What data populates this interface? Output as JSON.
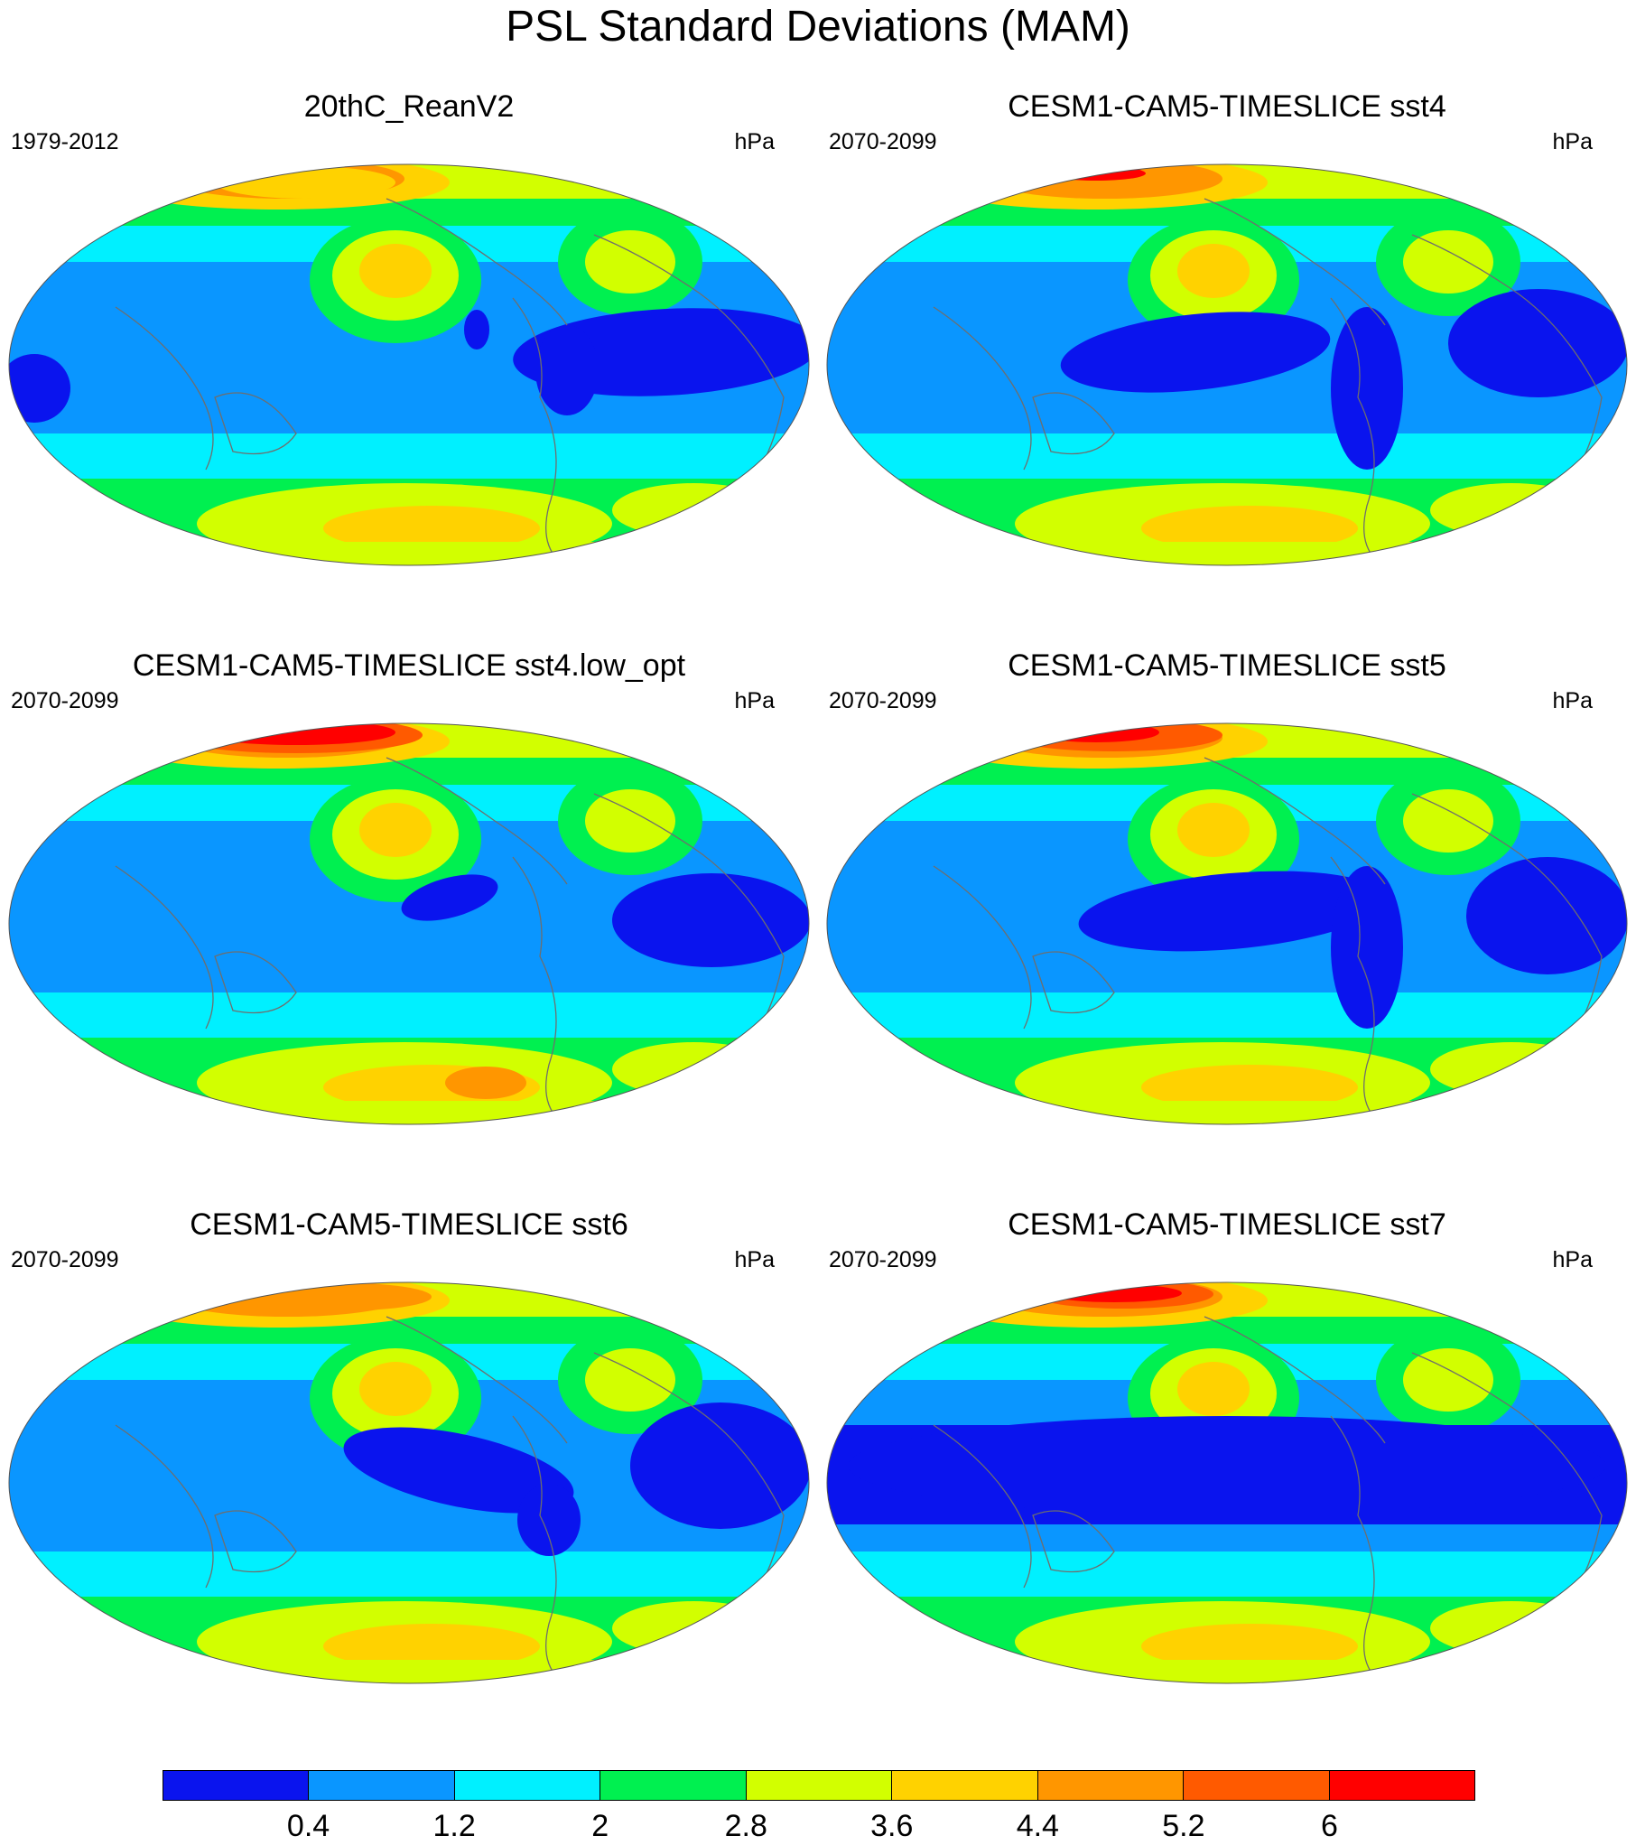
{
  "figure": {
    "title": "PSL Standard Deviations (MAM)"
  },
  "panels": [
    {
      "title": "20thC_ReanV2",
      "period": "1979-2012",
      "units": "hPa",
      "variant": "rean"
    },
    {
      "title": "CESM1-CAM5-TIMESLICE sst4",
      "period": "2070-2099",
      "units": "hPa",
      "variant": "sst4"
    },
    {
      "title": "CESM1-CAM5-TIMESLICE sst4.low_opt",
      "period": "2070-2099",
      "units": "hPa",
      "variant": "lowopt"
    },
    {
      "title": "CESM1-CAM5-TIMESLICE sst5",
      "period": "2070-2099",
      "units": "hPa",
      "variant": "sst5"
    },
    {
      "title": "CESM1-CAM5-TIMESLICE sst6",
      "period": "2070-2099",
      "units": "hPa",
      "variant": "sst6"
    },
    {
      "title": "CESM1-CAM5-TIMESLICE sst7",
      "period": "2070-2099",
      "units": "hPa",
      "variant": "sst7"
    }
  ],
  "colorbar": {
    "levels": [
      "0.4",
      "1.2",
      "2",
      "2.8",
      "3.6",
      "4.4",
      "5.2",
      "6"
    ],
    "colors": [
      "#0a14ee",
      "#0a96ff",
      "#00f0ff",
      "#00f050",
      "#d2ff00",
      "#ffd200",
      "#ff9600",
      "#ff5a00",
      "#ff0000"
    ]
  }
}
